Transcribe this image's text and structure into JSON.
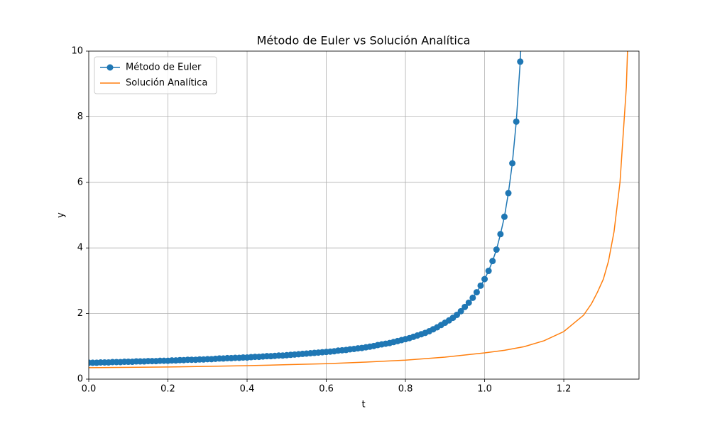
{
  "chart_data": {
    "type": "line",
    "title": "Método de Euler vs Solución Analítica",
    "xlabel": "t",
    "ylabel": "y",
    "xlim": [
      0,
      1.39
    ],
    "ylim": [
      0,
      10
    ],
    "xticks": [
      {
        "value": 0,
        "label": "0.0"
      },
      0.2,
      0.4,
      0.6,
      0.8,
      {
        "value": 1,
        "label": "1.0"
      },
      1.2
    ],
    "yticks": [
      0,
      2,
      4,
      6,
      8,
      10
    ],
    "grid": true,
    "legend": "upper left",
    "series": [
      {
        "name": "Método de Euler",
        "color": "#1f77b4",
        "marker": "o",
        "x": [
          0,
          0.01,
          0.02,
          0.03,
          0.04,
          0.05,
          0.06,
          0.07,
          0.08,
          0.09,
          0.1,
          0.11,
          0.12,
          0.13,
          0.14,
          0.15,
          0.16,
          0.17,
          0.18,
          0.19,
          0.2,
          0.21,
          0.22,
          0.23,
          0.24,
          0.25,
          0.26,
          0.27,
          0.28,
          0.29,
          0.3,
          0.31,
          0.32,
          0.33,
          0.34,
          0.35,
          0.36,
          0.37,
          0.38,
          0.39,
          0.4,
          0.41,
          0.42,
          0.43,
          0.44,
          0.45,
          0.46,
          0.47,
          0.48,
          0.49,
          0.5,
          0.51,
          0.52,
          0.53,
          0.54,
          0.55,
          0.56,
          0.57,
          0.58,
          0.59,
          0.6,
          0.61,
          0.62,
          0.63,
          0.64,
          0.65,
          0.66,
          0.67,
          0.68,
          0.69,
          0.7,
          0.71,
          0.72,
          0.73,
          0.74,
          0.75,
          0.76,
          0.77,
          0.78,
          0.79,
          0.8,
          0.81,
          0.82,
          0.83,
          0.84,
          0.85,
          0.86,
          0.87,
          0.88,
          0.89,
          0.9,
          0.91,
          0.92,
          0.93,
          0.94,
          0.95,
          0.96,
          0.97,
          0.98,
          0.99,
          1,
          1.01,
          1.02,
          1.03,
          1.04,
          1.05,
          1.06,
          1.07,
          1.08,
          1.09,
          1.1
        ],
        "values": [
          0.5,
          0.5,
          0.5,
          0.51,
          0.51,
          0.51,
          0.52,
          0.52,
          0.52,
          0.53,
          0.53,
          0.53,
          0.54,
          0.54,
          0.54,
          0.55,
          0.55,
          0.55,
          0.56,
          0.56,
          0.56,
          0.57,
          0.57,
          0.58,
          0.58,
          0.59,
          0.59,
          0.59,
          0.6,
          0.6,
          0.61,
          0.61,
          0.62,
          0.63,
          0.63,
          0.64,
          0.64,
          0.65,
          0.65,
          0.66,
          0.66,
          0.67,
          0.68,
          0.68,
          0.69,
          0.7,
          0.7,
          0.71,
          0.72,
          0.72,
          0.73,
          0.74,
          0.75,
          0.76,
          0.77,
          0.78,
          0.79,
          0.8,
          0.81,
          0.82,
          0.83,
          0.84,
          0.85,
          0.87,
          0.88,
          0.89,
          0.91,
          0.92,
          0.94,
          0.95,
          0.97,
          0.99,
          1.01,
          1.04,
          1.06,
          1.08,
          1.1,
          1.13,
          1.16,
          1.19,
          1.22,
          1.25,
          1.29,
          1.33,
          1.37,
          1.41,
          1.46,
          1.52,
          1.58,
          1.65,
          1.72,
          1.79,
          1.87,
          1.96,
          2.07,
          2.2,
          2.33,
          2.48,
          2.65,
          2.85,
          3.05,
          3.3,
          3.6,
          3.95,
          4.42,
          4.95,
          5.67,
          6.58,
          7.85,
          9.68,
          12.5
        ]
      },
      {
        "name": "Solución Analítica",
        "color": "#ff7f0e",
        "x": [
          0,
          0.1,
          0.2,
          0.3,
          0.4,
          0.5,
          0.6,
          0.7,
          0.8,
          0.9,
          1,
          1.05,
          1.1,
          1.15,
          1.2,
          1.25,
          1.27,
          1.285,
          1.3,
          1.313,
          1.327,
          1.342,
          1.358,
          1.372
        ],
        "values": [
          0.35,
          0.36,
          0.37,
          0.39,
          0.41,
          0.44,
          0.47,
          0.52,
          0.58,
          0.67,
          0.8,
          0.88,
          0.99,
          1.17,
          1.45,
          1.95,
          2.3,
          2.65,
          3.05,
          3.6,
          4.5,
          6.0,
          8.9,
          14
        ]
      }
    ]
  }
}
